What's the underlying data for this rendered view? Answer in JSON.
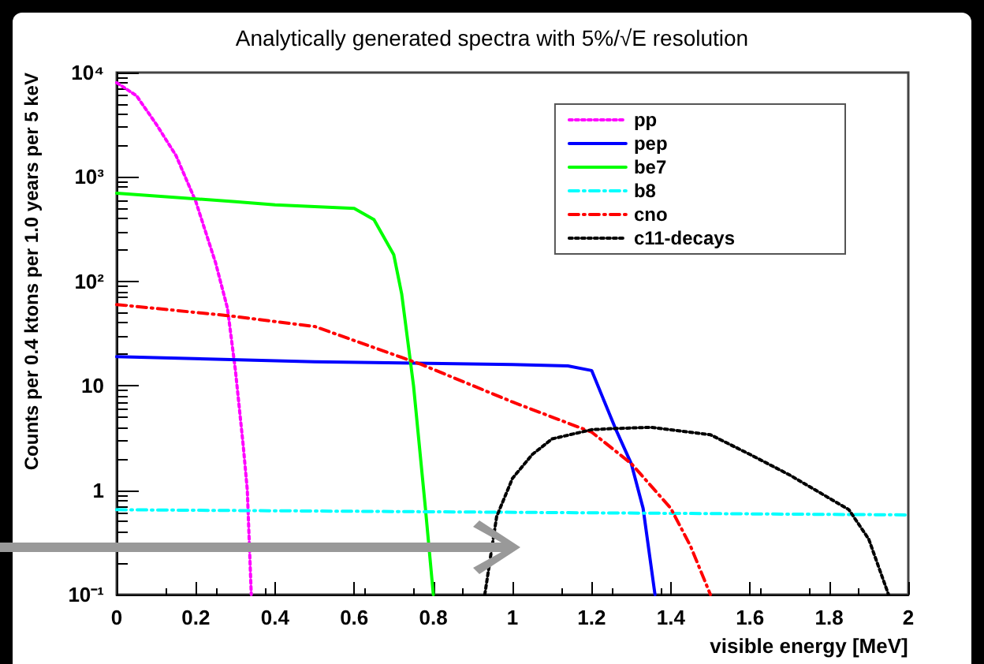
{
  "chart_data": {
    "type": "line",
    "title": "Analytically generated spectra with 5%/√E resolution",
    "xlabel": "visible energy [MeV]",
    "ylabel": "Counts per 0.4 ktons per 1.0 years per 5 keV",
    "log": "y",
    "grid": false,
    "legend": "top right",
    "marker": "none",
    "xlim": [
      0,
      2
    ],
    "xticks": [
      0,
      0.2,
      0.4,
      0.6,
      0.8,
      1,
      1.2,
      1.4,
      1.6,
      1.8,
      2
    ],
    "ylim": [
      0.1,
      10000
    ],
    "yticks": [
      {
        "value": 0.1,
        "label": "10⁻¹"
      },
      1,
      10,
      {
        "value": 100,
        "label": "10²"
      },
      {
        "value": 1000,
        "label": "10³"
      },
      {
        "value": 10000,
        "label": "10⁴"
      }
    ],
    "series": [
      {
        "name": "pp",
        "color": "#ff00ff",
        "line_style": "dotted",
        "x": [
          0,
          0.05,
          0.1,
          0.15,
          0.2,
          0.25,
          0.28,
          0.3,
          0.32,
          0.33,
          0.34
        ],
        "values": [
          8000,
          6000,
          3200,
          1600,
          580,
          150,
          55,
          14,
          2.6,
          1,
          0.1
        ]
      },
      {
        "name": "pep",
        "color": "#0000ff",
        "line_style": "solid",
        "x": [
          0,
          0.5,
          1,
          1.14,
          1.2,
          1.26,
          1.3,
          1.33,
          1.36
        ],
        "values": [
          19,
          17,
          16,
          15.5,
          14,
          3.9,
          1.8,
          0.67,
          0.1
        ]
      },
      {
        "name": "be7",
        "color": "#00ff00",
        "line_style": "solid",
        "x": [
          0,
          0.3,
          0.4,
          0.6,
          0.65,
          0.7,
          0.72,
          0.75,
          0.78,
          0.8
        ],
        "values": [
          700,
          580,
          540,
          500,
          390,
          180,
          76,
          10,
          0.67,
          0.1
        ]
      },
      {
        "name": "b8",
        "color": "#00ffff",
        "line_style": "dashed",
        "x": [
          0,
          2
        ],
        "values": [
          0.65,
          0.58
        ]
      },
      {
        "name": "cno",
        "color": "#ff0000",
        "line_style": "dashed",
        "x": [
          0,
          0.28,
          0.5,
          0.77,
          1,
          1.2,
          1.3,
          1.4,
          1.45,
          1.5
        ],
        "values": [
          60,
          47,
          37,
          16,
          7,
          3.6,
          1.8,
          0.67,
          0.29,
          0.1
        ]
      },
      {
        "name": "c11-decays",
        "color": "#000000",
        "line_style": "dotted",
        "x": [
          0.93,
          0.96,
          1,
          1.05,
          1.1,
          1.2,
          1.26,
          1.35,
          1.5,
          1.6,
          1.7,
          1.8,
          1.85,
          1.9,
          1.95
        ],
        "values": [
          0.1,
          0.56,
          1.3,
          2.2,
          3.1,
          3.8,
          3.9,
          4,
          3.4,
          2.2,
          1.4,
          0.84,
          0.65,
          0.34,
          0.1
        ]
      }
    ]
  }
}
